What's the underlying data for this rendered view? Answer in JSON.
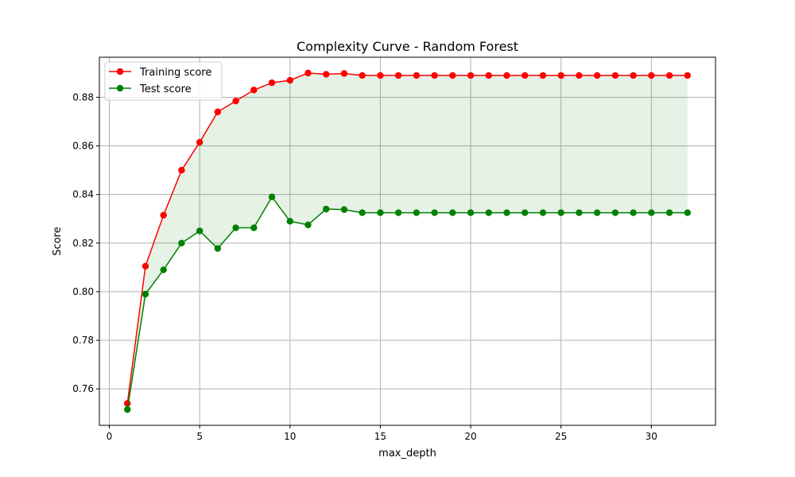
{
  "chart_data": {
    "type": "line",
    "title": "Complexity Curve - Random Forest",
    "xlabel": "max_depth",
    "ylabel": "Score",
    "xlim": [
      -0.55,
      33.55
    ],
    "ylim": [
      0.745,
      0.8965
    ],
    "xticks": [
      0,
      5,
      10,
      15,
      20,
      25,
      30
    ],
    "yticks": [
      0.76,
      0.78,
      0.8,
      0.82,
      0.84,
      0.86,
      0.88
    ],
    "grid": true,
    "legend_position": "top-left",
    "fill_between": {
      "color": "#008000",
      "opacity": 0.1,
      "between": [
        "Training score",
        "Test score"
      ]
    },
    "x": [
      1,
      2,
      3,
      4,
      5,
      6,
      7,
      8,
      9,
      10,
      11,
      12,
      13,
      14,
      15,
      16,
      17,
      18,
      19,
      20,
      21,
      22,
      23,
      24,
      25,
      26,
      27,
      28,
      29,
      30,
      31,
      32
    ],
    "series": [
      {
        "name": "Training score",
        "color": "#ff0000",
        "values": [
          0.754,
          0.8105,
          0.8315,
          0.85,
          0.8615,
          0.874,
          0.8785,
          0.883,
          0.886,
          0.887,
          0.89,
          0.8895,
          0.8898,
          0.889,
          0.889,
          0.889,
          0.889,
          0.889,
          0.889,
          0.889,
          0.889,
          0.889,
          0.889,
          0.889,
          0.889,
          0.889,
          0.889,
          0.889,
          0.889,
          0.889,
          0.889,
          0.889
        ]
      },
      {
        "name": "Test score",
        "color": "#008000",
        "values": [
          0.7515,
          0.799,
          0.809,
          0.82,
          0.825,
          0.8178,
          0.8263,
          0.8263,
          0.839,
          0.829,
          0.8275,
          0.834,
          0.8338,
          0.8325,
          0.8325,
          0.8325,
          0.8325,
          0.8325,
          0.8325,
          0.8325,
          0.8325,
          0.8325,
          0.8325,
          0.8325,
          0.8325,
          0.8325,
          0.8325,
          0.8325,
          0.8325,
          0.8325,
          0.8325,
          0.8325
        ]
      }
    ]
  }
}
